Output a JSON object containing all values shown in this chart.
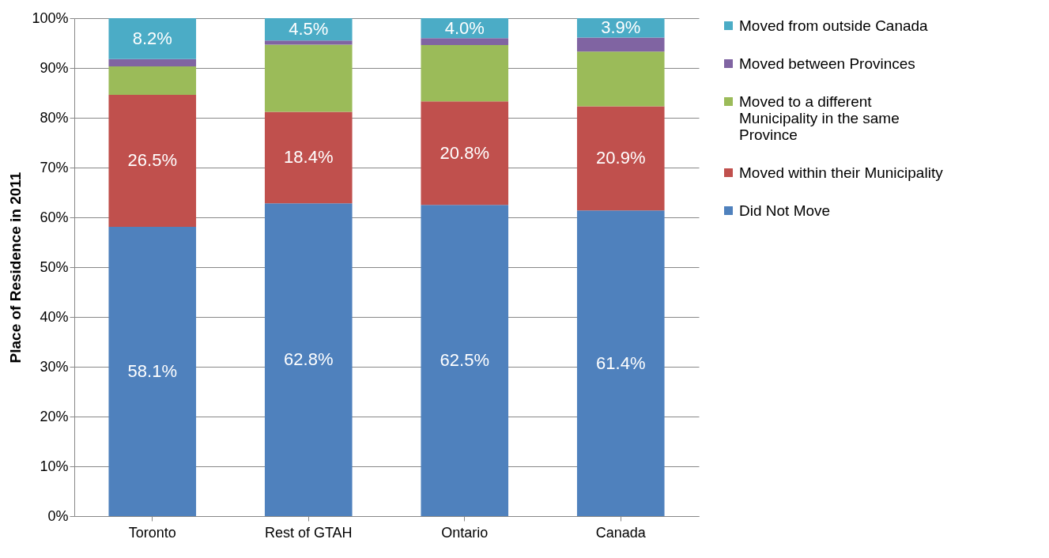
{
  "chart_data": {
    "type": "bar",
    "stacked": true,
    "ylabel": "Place of Residence in 2011",
    "categories": [
      "Toronto",
      "Rest of GTAH",
      "Ontario",
      "Canada"
    ],
    "series": [
      {
        "name": "Did Not Move",
        "color": "#4f81bd",
        "values": [
          58.1,
          62.8,
          62.5,
          61.4
        ],
        "value_labels": [
          "58.1%",
          "62.8%",
          "62.5%",
          "61.4%"
        ]
      },
      {
        "name": "Moved within their Municipality",
        "color": "#c0504d",
        "values": [
          26.5,
          18.4,
          20.8,
          20.9
        ],
        "value_labels": [
          "26.5%",
          "18.4%",
          "20.8%",
          "20.9%"
        ]
      },
      {
        "name": "Moved to a different Municipality in the same Province",
        "color": "#9bbb59",
        "values": [
          5.7,
          13.5,
          11.3,
          11.0
        ]
      },
      {
        "name": "Moved between Provinces",
        "color": "#8064a2",
        "values": [
          1.5,
          0.8,
          1.4,
          2.8
        ]
      },
      {
        "name": "Moved from outside Canada",
        "color": "#4bacc6",
        "values": [
          8.2,
          4.5,
          4.0,
          3.9
        ],
        "value_labels": [
          "8.2%",
          "4.5%",
          "4.0%",
          "3.9%"
        ]
      }
    ],
    "ylim": [
      0,
      100
    ],
    "yticks": [
      {
        "value": 0,
        "label": "0%"
      },
      {
        "value": 10,
        "label": "10%"
      },
      {
        "value": 20,
        "label": "20%"
      },
      {
        "value": 30,
        "label": "30%"
      },
      {
        "value": 40,
        "label": "40%"
      },
      {
        "value": 50,
        "label": "50%"
      },
      {
        "value": 60,
        "label": "60%"
      },
      {
        "value": 70,
        "label": "70%"
      },
      {
        "value": 80,
        "label": "80%"
      },
      {
        "value": 90,
        "label": "90%"
      },
      {
        "value": 100,
        "label": "100%"
      }
    ],
    "grid": "y",
    "legend": "right"
  }
}
